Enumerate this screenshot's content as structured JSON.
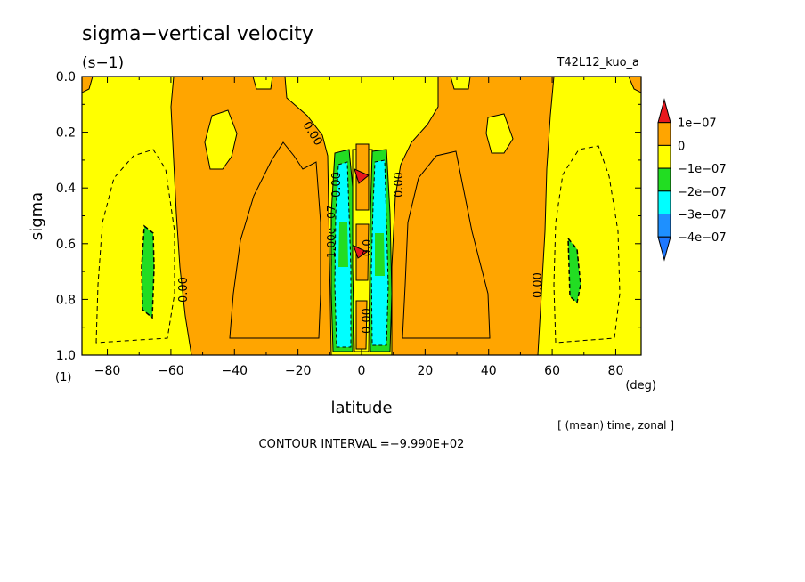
{
  "chart_data": {
    "type": "contour",
    "title": "sigma−vertical velocity",
    "units": "(s−1)",
    "run_label": "T42L12_kuo_a",
    "xlabel": "latitude",
    "x_unit": "(deg)",
    "ylabel": "sigma",
    "y_unit": "(1)",
    "xlim": [
      -88,
      88
    ],
    "ylim": [
      0.0,
      1.0
    ],
    "y_inverted": true,
    "x_ticks": [
      -80,
      -60,
      -40,
      -20,
      0,
      20,
      40,
      60,
      80
    ],
    "y_ticks": [
      0.0,
      0.2,
      0.4,
      0.6,
      0.8,
      1.0
    ],
    "x_tick_labels": [
      "−80",
      "−60",
      "−40",
      "−20",
      "0",
      "20",
      "40",
      "60",
      "80"
    ],
    "y_tick_labels": [
      "0.0",
      "0.2",
      "0.4",
      "0.6",
      "0.8",
      "1.0"
    ],
    "colorbar": {
      "labels": [
        "1e−07",
        "0",
        "−1e−07",
        "−2e−07",
        "−3e−07",
        "−4e−07"
      ],
      "levels": [
        1e-07,
        0,
        -1e-07,
        -2e-07,
        -3e-07,
        -4e-07
      ],
      "colors": [
        "#e8171d",
        "#ffa500",
        "#ffff00",
        "#22dd22",
        "#00ffff",
        "#1e90ff",
        "#1e78ff"
      ]
    },
    "contour_labels": [
      "0.00",
      "0.00",
      "0.00",
      "0.00",
      "0.00",
      "0.00",
      "−1.00e−07",
      "0.0"
    ],
    "contour_interval_text": "CONTOUR INTERVAL =−9.990E+02",
    "averaging_note": "[ (mean) time, zonal ]",
    "colors": {
      "positive": "#ffa500",
      "weak_negative": "#ffff00",
      "negative_2": "#22dd22",
      "negative_3": "#00ffff",
      "strong_positive": "#e8171d"
    }
  }
}
